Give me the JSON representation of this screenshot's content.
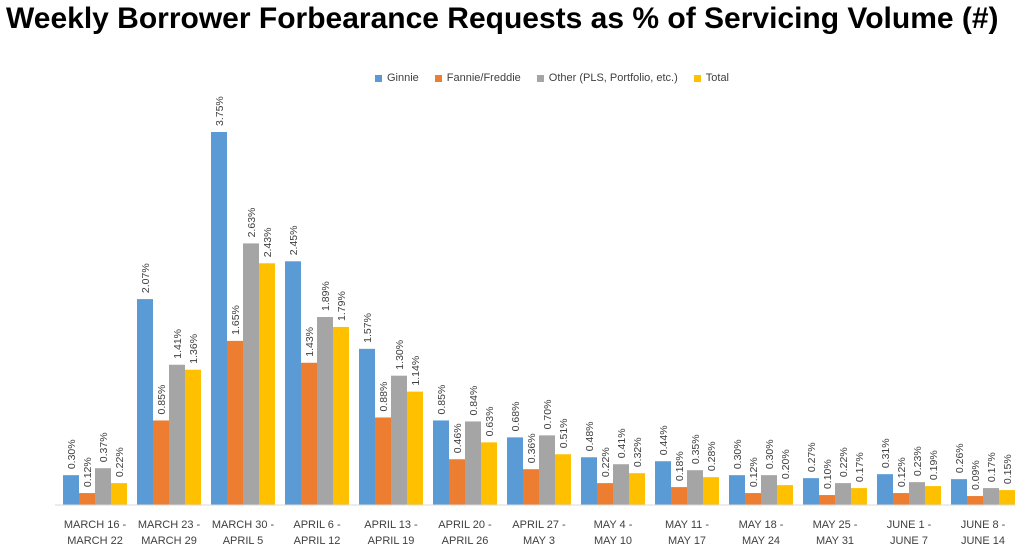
{
  "title": "Weekly Borrower Forbearance Requests as % of Servicing Volume (#)",
  "chart_data": {
    "type": "bar",
    "title": "Weekly Borrower Forbearance Requests as % of Servicing Volume (#)",
    "xlabel": "",
    "ylabel": "",
    "legend_position": "top-center",
    "grid": false,
    "ylim": [
      0,
      4.0
    ],
    "categories": [
      [
        "MARCH 16 -",
        "MARCH 22"
      ],
      [
        "MARCH 23 -",
        "MARCH 29"
      ],
      [
        "MARCH 30 -",
        "APRIL 5"
      ],
      [
        "APRIL 6 -",
        "APRIL 12"
      ],
      [
        "APRIL 13 -",
        "APRIL 19"
      ],
      [
        "APRIL 20 -",
        "APRIL 26"
      ],
      [
        "APRIL 27 -",
        "MAY 3"
      ],
      [
        "MAY 4 -",
        "MAY 10"
      ],
      [
        "MAY 11 -",
        "MAY 17"
      ],
      [
        "MAY 18 -",
        "MAY 24"
      ],
      [
        "MAY 25 -",
        "MAY 31"
      ],
      [
        "JUNE 1 -",
        "JUNE 7"
      ],
      [
        "JUNE 8 -",
        "JUNE 14"
      ]
    ],
    "series": [
      {
        "name": "Ginnie",
        "color": "#5B9BD5",
        "values": [
          0.3,
          2.07,
          3.75,
          2.45,
          1.57,
          0.85,
          0.68,
          0.48,
          0.44,
          0.3,
          0.27,
          0.31,
          0.26
        ],
        "labels": [
          "0.30%",
          "2.07%",
          "3.75%",
          "2.45%",
          "1.57%",
          "0.85%",
          "0.68%",
          "0.48%",
          "0.44%",
          "0.30%",
          "0.27%",
          "0.31%",
          "0.26%"
        ]
      },
      {
        "name": "Fannie/Freddie",
        "color": "#ED7D31",
        "values": [
          0.12,
          0.85,
          1.65,
          1.43,
          0.88,
          0.46,
          0.36,
          0.22,
          0.18,
          0.12,
          0.1,
          0.12,
          0.09
        ],
        "labels": [
          "0.12%",
          "0.85%",
          "1.65%",
          "1.43%",
          "0.88%",
          "0.46%",
          "0.36%",
          "0.22%",
          "0.18%",
          "0.12%",
          "0.10%",
          "0.12%",
          "0.09%"
        ]
      },
      {
        "name": "Other (PLS, Portfolio, etc.)",
        "color": "#A5A5A5",
        "values": [
          0.37,
          1.41,
          2.63,
          1.89,
          1.3,
          0.84,
          0.7,
          0.41,
          0.35,
          0.3,
          0.22,
          0.23,
          0.17
        ],
        "labels": [
          "0.37%",
          "1.41%",
          "2.63%",
          "1.89%",
          "1.30%",
          "0.84%",
          "0.70%",
          "0.41%",
          "0.35%",
          "0.30%",
          "0.22%",
          "0.23%",
          "0.17%"
        ]
      },
      {
        "name": "Total",
        "color": "#FFC000",
        "values": [
          0.22,
          1.36,
          2.43,
          1.79,
          1.14,
          0.63,
          0.51,
          0.32,
          0.28,
          0.2,
          0.17,
          0.19,
          0.15
        ],
        "labels": [
          "0.22%",
          "1.36%",
          "2.43%",
          "1.79%",
          "1.14%",
          "0.63%",
          "0.51%",
          "0.32%",
          "0.28%",
          "0.20%",
          "0.17%",
          "0.19%",
          "0.15%"
        ]
      }
    ]
  }
}
